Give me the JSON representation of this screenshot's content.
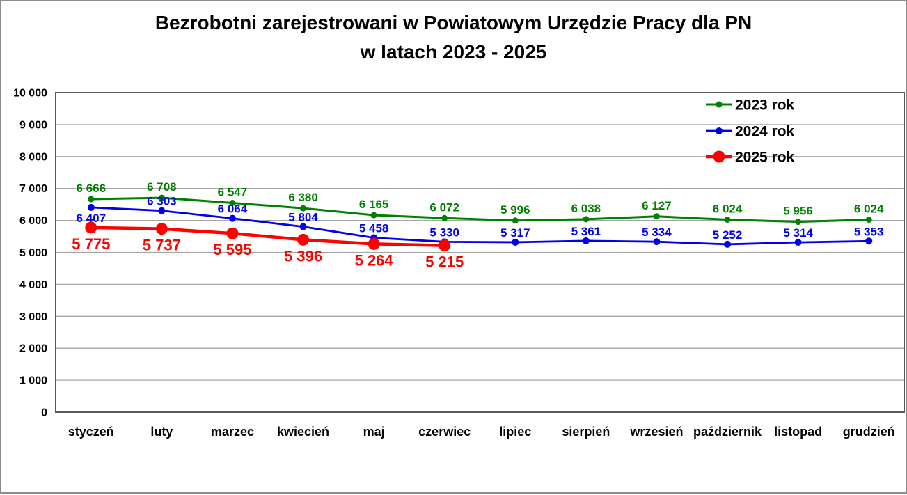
{
  "title": {
    "line1": "Bezrobotni zarejestrowani w Powiatowym Urzędzie Pracy dla PN",
    "line2": "w latach 2023 - 2025"
  },
  "chart_data": {
    "type": "line",
    "title": "Bezrobotni zarejestrowani w Powiatowym Urzędzie Pracy dla PN w latach 2023 - 2025",
    "xlabel": "",
    "ylabel": "",
    "ylim": [
      0,
      10000
    ],
    "ytick_step": 1000,
    "ytick_values": [
      0,
      1000,
      2000,
      3000,
      4000,
      5000,
      6000,
      7000,
      8000,
      9000,
      10000
    ],
    "ytick_labels": [
      "0",
      "1 000",
      "2 000",
      "3 000",
      "4 000",
      "5 000",
      "6 000",
      "7 000",
      "8 000",
      "9 000",
      "10 000"
    ],
    "grid": "horizontal",
    "legend_position": "top-right",
    "categories": [
      "styczeń",
      "luty",
      "marzec",
      "kwiecień",
      "maj",
      "czerwiec",
      "lipiec",
      "sierpień",
      "wrzesień",
      "październik",
      "listopad",
      "grudzień"
    ],
    "series": [
      {
        "name": "2023 rok",
        "color": "#008000",
        "values": [
          6666,
          6708,
          6547,
          6380,
          6165,
          6072,
          5996,
          6038,
          6127,
          6024,
          5956,
          6024
        ],
        "label_placement": "above",
        "label_placement_overrides": {}
      },
      {
        "name": "2024 rok",
        "color": "#0000ee",
        "values": [
          6407,
          6303,
          6064,
          5804,
          5458,
          5330,
          5317,
          5361,
          5334,
          5252,
          5314,
          5353
        ],
        "label_placement": "above",
        "label_placement_overrides": {
          "0": "below"
        }
      },
      {
        "name": "2025 rok",
        "color": "#fe0000",
        "values": [
          5775,
          5737,
          5595,
          5396,
          5264,
          5215
        ],
        "label_placement": "below",
        "label_placement_overrides": {}
      }
    ]
  }
}
